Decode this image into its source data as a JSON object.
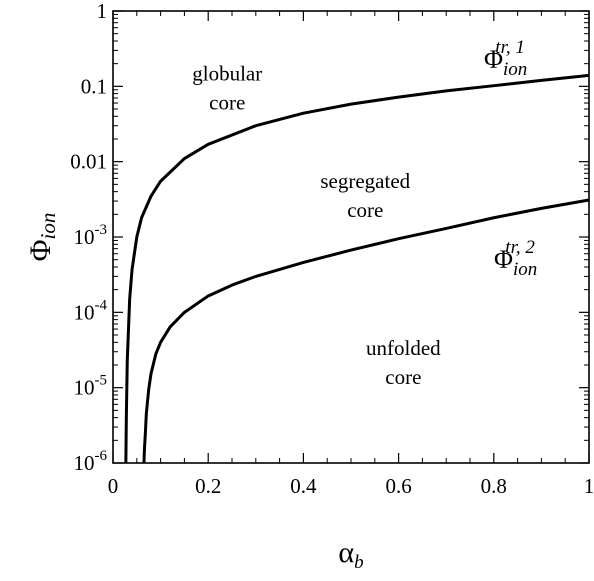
{
  "chart_data": {
    "type": "line",
    "xlabel": {
      "base": "α",
      "sub": "b"
    },
    "ylabel": {
      "base": "Φ",
      "sub": "ion"
    },
    "xlim": [
      0,
      1
    ],
    "ylim": [
      1e-06,
      1
    ],
    "yscale": "log",
    "x_ticks": [
      {
        "value": 0,
        "label": "0"
      },
      {
        "value": 0.2,
        "label": "0.2"
      },
      {
        "value": 0.4,
        "label": "0.4"
      },
      {
        "value": 0.6,
        "label": "0.6"
      },
      {
        "value": 0.8,
        "label": "0.8"
      },
      {
        "value": 1,
        "label": "1"
      }
    ],
    "y_ticks": [
      {
        "value": 1,
        "base": "1",
        "exp": ""
      },
      {
        "value": 0.1,
        "base": "0.1",
        "exp": ""
      },
      {
        "value": 0.01,
        "base": "0.01",
        "exp": ""
      },
      {
        "value": 0.001,
        "base": "10",
        "exp": "-3"
      },
      {
        "value": 0.0001,
        "base": "10",
        "exp": "-4"
      },
      {
        "value": 1e-05,
        "base": "10",
        "exp": "-5"
      },
      {
        "value": 1e-06,
        "base": "10",
        "exp": "-6"
      }
    ],
    "series": [
      {
        "label": {
          "base": "Φ",
          "sub": "ion",
          "sup": "tr, 1"
        },
        "x": [
          0.027,
          0.028,
          0.03,
          0.035,
          0.04,
          0.05,
          0.06,
          0.08,
          0.1,
          0.15,
          0.2,
          0.3,
          0.4,
          0.5,
          0.6,
          0.7,
          0.8,
          0.9,
          1.0
        ],
        "y": [
          1e-06,
          4e-06,
          2.3e-05,
          0.00015,
          0.00037,
          0.001,
          0.0018,
          0.0035,
          0.0055,
          0.011,
          0.017,
          0.03,
          0.044,
          0.058,
          0.072,
          0.087,
          0.102,
          0.12,
          0.14
        ]
      },
      {
        "label": {
          "base": "Φ",
          "sub": "ion",
          "sup": "tr, 2"
        },
        "x": [
          0.065,
          0.066,
          0.068,
          0.07,
          0.075,
          0.08,
          0.09,
          0.1,
          0.12,
          0.15,
          0.2,
          0.25,
          0.3,
          0.4,
          0.5,
          0.6,
          0.7,
          0.8,
          0.9,
          1.0
        ],
        "y": [
          1e-06,
          1.5e-06,
          2.5e-06,
          4.5e-06,
          9.5e-06,
          1.55e-05,
          2.8e-05,
          4e-05,
          6.4e-05,
          0.0001,
          0.000165,
          0.00023,
          0.0003,
          0.00046,
          0.00067,
          0.00095,
          0.0013,
          0.0018,
          0.0024,
          0.0031
        ]
      }
    ],
    "annotations": [
      {
        "lines": [
          "globular",
          "core"
        ],
        "x": 0.24,
        "y": 0.12
      },
      {
        "lines": [
          "segregated",
          "core"
        ],
        "x": 0.53,
        "y": 0.0045
      },
      {
        "lines": [
          "unfolded",
          "core"
        ],
        "x": 0.61,
        "y": 2.7e-05
      }
    ]
  }
}
